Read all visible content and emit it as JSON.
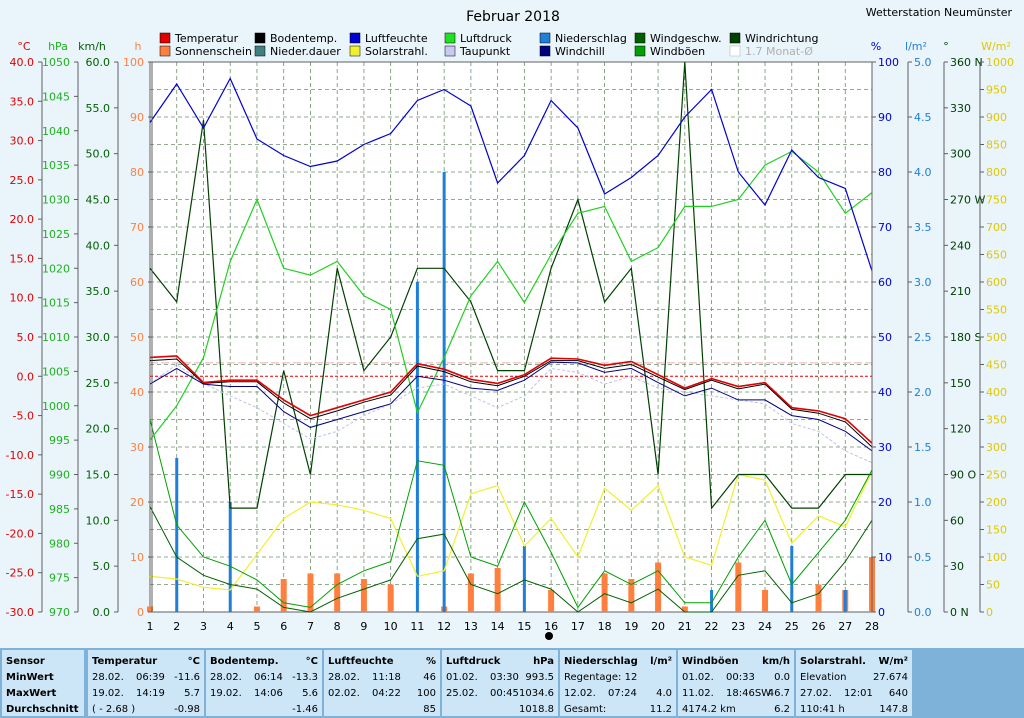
{
  "title": "Februar 2018",
  "station": "Wetterstation Neumünster",
  "colors": {
    "temperature": "#e00000",
    "soil_temp": "#000000",
    "humidity": "#0000d0",
    "pressure": "#20d020",
    "precip": "#1e7fd8",
    "windspeed": "#006000",
    "winddir": "#004000",
    "sunshine": "#ff7f3f",
    "solar": "#f0f030",
    "dewpoint": "#c0c0e8",
    "windchill": "#000080",
    "gusts": "#00a000",
    "plot_bg": "#ffffff",
    "grid": "#6f8f6f"
  },
  "axes": {
    "temp": {
      "unit": "°C",
      "min": -30,
      "max": 40,
      "ticks": [
        "40.0",
        "35.0",
        "30.0",
        "25.0",
        "20.0",
        "15.0",
        "10.0",
        "5.0",
        "0.0",
        "-5.0",
        "-10.0",
        "-15.0",
        "-20.0",
        "-25.0",
        "-30.0"
      ]
    },
    "pressure": {
      "unit": "hPa",
      "min": 970,
      "max": 1050,
      "ticks": [
        "1050",
        "1045",
        "1040",
        "1035",
        "1030",
        "1025",
        "1020",
        "1015",
        "1010",
        "1005",
        "1000",
        "995",
        "990",
        "985",
        "980",
        "975",
        "970"
      ]
    },
    "wind": {
      "unit": "km/h",
      "min": 0,
      "max": 60,
      "ticks": [
        "60.0",
        "55.0",
        "50.0",
        "45.0",
        "40.0",
        "35.0",
        "30.0",
        "25.0",
        "20.0",
        "15.0",
        "10.0",
        "5.0",
        "0.0"
      ]
    },
    "hours": {
      "unit": "h",
      "min": 0,
      "max": 100,
      "ticks": [
        "100",
        "90",
        "80",
        "70",
        "60",
        "50",
        "40",
        "30",
        "20",
        "10",
        "0"
      ]
    },
    "humidity": {
      "unit": "%",
      "min": 0,
      "max": 100,
      "ticks": [
        "100",
        "90",
        "80",
        "70",
        "60",
        "50",
        "40",
        "30",
        "20",
        "10",
        "0"
      ]
    },
    "precip": {
      "unit": "l/m²",
      "min": 0,
      "max": 5,
      "ticks": [
        "5.0",
        "4.5",
        "4.0",
        "3.5",
        "3.0",
        "2.5",
        "2.0",
        "1.5",
        "1.0",
        "0.5",
        "0.0"
      ]
    },
    "direction": {
      "unit": "°",
      "min": 0,
      "max": 360,
      "ticks": [
        "360 N",
        "330",
        "300",
        "270 W",
        "240",
        "210",
        "180 S",
        "150",
        "120",
        "90  O",
        "60",
        "30",
        "0  N"
      ]
    },
    "solar": {
      "unit": "W/m²",
      "min": 0,
      "max": 1000,
      "ticks": [
        "1000",
        "950",
        "900",
        "850",
        "800",
        "750",
        "700",
        "650",
        "600",
        "550",
        "500",
        "450",
        "400",
        "350",
        "300",
        "250",
        "200",
        "150",
        "100",
        "50",
        "0"
      ]
    },
    "x": {
      "min": 1,
      "max": 28,
      "ticks": [
        "1",
        "2",
        "3",
        "4",
        "5",
        "6",
        "7",
        "8",
        "9",
        "10",
        "11",
        "12",
        "13",
        "14",
        "15",
        "16",
        "17",
        "18",
        "19",
        "20",
        "21",
        "22",
        "23",
        "24",
        "25",
        "26",
        "27",
        "28"
      ]
    }
  },
  "legend": [
    {
      "label": "Temperatur",
      "color": "#e00000"
    },
    {
      "label": "Bodentemp.",
      "color": "#000000"
    },
    {
      "label": "Luftfeuchte",
      "color": "#0000d0"
    },
    {
      "label": "Luftdruck",
      "color": "#20e020"
    },
    {
      "label": "Niederschlag",
      "color": "#1e7fd8"
    },
    {
      "label": "Windgeschw.",
      "color": "#006000"
    },
    {
      "label": "Windrichtung",
      "color": "#004000"
    },
    {
      "label": "Sonnenschein",
      "color": "#ff7f3f"
    },
    {
      "label": "Nieder.dauer",
      "color": "#408080"
    },
    {
      "label": "Solarstrahl.",
      "color": "#f0f030"
    },
    {
      "label": "Taupunkt",
      "color": "#c8c8f0"
    },
    {
      "label": "Windchill",
      "color": "#000080"
    },
    {
      "label": "Windböen",
      "color": "#00a000"
    },
    {
      "label": "1.7 Monat-Ø",
      "color": "#ffffff"
    }
  ],
  "chart_data": {
    "type": "line",
    "x": [
      1,
      2,
      3,
      4,
      5,
      6,
      7,
      8,
      9,
      10,
      11,
      12,
      13,
      14,
      15,
      16,
      17,
      18,
      19,
      20,
      21,
      22,
      23,
      24,
      25,
      26,
      27,
      28
    ],
    "temperature_avg_ref": 1.7,
    "series": [
      {
        "name": "Temperatur",
        "axis": "temp",
        "values": [
          2.4,
          2.6,
          -0.8,
          -0.5,
          -0.5,
          -3.0,
          -5.0,
          -4.0,
          -3.0,
          -2.0,
          1.6,
          0.9,
          -0.4,
          -0.9,
          0.2,
          2.3,
          2.2,
          1.4,
          1.9,
          0.2,
          -1.5,
          -0.3,
          -1.3,
          -0.8,
          -4.0,
          -4.4,
          -5.4,
          -8.5
        ]
      },
      {
        "name": "Bodentemp.",
        "axis": "temp",
        "values": [
          2.0,
          2.2,
          -0.9,
          -0.7,
          -0.7,
          -3.4,
          -5.4,
          -4.4,
          -3.3,
          -2.4,
          1.3,
          0.6,
          -0.7,
          -1.2,
          0.0,
          2.0,
          2.0,
          1.0,
          1.5,
          -0.1,
          -1.7,
          -0.5,
          -1.6,
          -1.0,
          -4.2,
          -4.7,
          -5.8,
          -9.0
        ]
      },
      {
        "name": "Taupunkt",
        "axis": "temp",
        "values": [
          -1.0,
          1.5,
          -0.9,
          -2.5,
          -4.0,
          -6.0,
          -8.0,
          -7.0,
          -5.0,
          -3.5,
          -1.5,
          -1.0,
          -2.5,
          -4.0,
          -2.5,
          1.0,
          0.5,
          -1.0,
          0.0,
          -1.5,
          -2.0,
          -2.5,
          -3.0,
          -3.5,
          -6.0,
          -7.0,
          -9.5,
          -11.0
        ]
      },
      {
        "name": "Windchill",
        "axis": "temp",
        "values": [
          -1.0,
          1.0,
          -1.0,
          -1.3,
          -1.3,
          -4.5,
          -6.5,
          -5.5,
          -4.5,
          -3.5,
          0.0,
          -0.5,
          -1.5,
          -1.8,
          -0.5,
          1.8,
          1.7,
          0.5,
          1.0,
          -0.8,
          -2.5,
          -1.5,
          -3.0,
          -3.0,
          -5.0,
          -5.5,
          -7.0,
          -9.5
        ]
      },
      {
        "name": "Luftfeuchte",
        "axis": "humidity",
        "values": [
          89,
          96,
          88,
          97,
          86,
          83,
          81,
          82,
          85,
          87,
          93,
          95,
          92,
          78,
          83,
          93,
          88,
          76,
          79,
          83,
          90,
          95,
          80,
          74,
          84,
          79,
          77,
          62
        ]
      },
      {
        "name": "Luftdruck",
        "axis": "pressure",
        "values": [
          995,
          1000,
          1007,
          1021,
          1030,
          1020,
          1019,
          1021,
          1016,
          1014,
          999,
          1007,
          1016,
          1021,
          1015,
          1022,
          1028,
          1029,
          1021,
          1023,
          1029,
          1029,
          1030,
          1035,
          1037,
          1034,
          1028,
          1031
        ]
      },
      {
        "name": "Windgeschw.",
        "axis": "wind",
        "values": [
          11.5,
          6.0,
          4.0,
          3.0,
          2.5,
          0.5,
          0.0,
          1.5,
          2.5,
          3.5,
          8.0,
          8.5,
          3.0,
          2.0,
          3.5,
          2.5,
          0.0,
          2.0,
          1.0,
          2.5,
          0.0,
          0.0,
          4.0,
          4.5,
          1.0,
          2.0,
          5.5,
          10.0
        ]
      },
      {
        "name": "Windböen",
        "axis": "wind",
        "values": [
          21.0,
          9.5,
          6.0,
          5.0,
          3.5,
          1.0,
          0.5,
          3.0,
          4.5,
          5.5,
          16.5,
          16.0,
          6.0,
          5.0,
          12.0,
          6.5,
          0.5,
          4.5,
          3.0,
          4.5,
          1.0,
          1.0,
          6.0,
          10.0,
          3.0,
          6.5,
          10.0,
          15.5
        ]
      },
      {
        "name": "Windrichtung",
        "axis": "direction",
        "values": [
          225,
          203,
          322,
          68,
          68,
          158,
          90,
          225,
          158,
          180,
          225,
          225,
          203,
          158,
          158,
          225,
          270,
          203,
          225,
          90,
          360,
          68,
          90,
          90,
          68,
          68,
          90,
          90
        ]
      },
      {
        "name": "Solarstrahl.",
        "axis": "solar",
        "values": [
          65,
          60,
          45,
          40,
          105,
          170,
          200,
          195,
          185,
          170,
          65,
          75,
          215,
          230,
          120,
          170,
          100,
          225,
          185,
          230,
          100,
          85,
          250,
          240,
          125,
          175,
          155,
          255
        ]
      },
      {
        "name": "Sonnenschein",
        "axis": "hours",
        "type": "bar",
        "values": [
          1,
          0,
          0,
          0,
          1,
          6,
          7,
          7,
          6,
          5,
          0,
          1,
          7,
          8,
          0,
          4,
          0,
          7,
          6,
          9,
          1,
          0,
          9,
          4,
          0,
          5,
          4,
          10
        ]
      },
      {
        "name": "Niederschlag",
        "axis": "precip",
        "type": "bar",
        "values": [
          0.0,
          1.4,
          0.0,
          1.0,
          0.0,
          0.0,
          0.0,
          0.0,
          0.0,
          0.0,
          3.0,
          4.0,
          0.0,
          0.0,
          0.6,
          0.0,
          0.0,
          0.0,
          0.0,
          0.0,
          0.0,
          0.2,
          0.0,
          0.0,
          0.6,
          0.0,
          0.2,
          0.0
        ]
      }
    ]
  },
  "stats": {
    "row_labels": [
      "Sensor",
      "MinWert",
      "MaxWert",
      "Durchschnitt"
    ],
    "cells": [
      {
        "title": "Temperatur",
        "unit": "°C",
        "rows": [
          [
            "28.02.",
            "06:39",
            "-11.6"
          ],
          [
            "19.02.",
            "14:19",
            "5.7"
          ],
          [
            "( - 2.68 )",
            "",
            "-0.98"
          ]
        ]
      },
      {
        "title": "Bodentemp.",
        "unit": "°C",
        "rows": [
          [
            "28.02.",
            "06:14",
            "-13.3"
          ],
          [
            "19.02.",
            "14:06",
            "5.6"
          ],
          [
            "",
            "",
            "-1.46"
          ]
        ]
      },
      {
        "title": "Luftfeuchte",
        "unit": "%",
        "rows": [
          [
            "28.02.",
            "11:18",
            "46"
          ],
          [
            "02.02.",
            "04:22",
            "100"
          ],
          [
            "",
            "",
            "85"
          ]
        ]
      },
      {
        "title": "Luftdruck",
        "unit": "hPa",
        "rows": [
          [
            "01.02.",
            "03:30",
            "993.5"
          ],
          [
            "25.02.",
            "00:45",
            "1034.6"
          ],
          [
            "",
            "",
            "1018.8"
          ]
        ]
      },
      {
        "title": "Niederschlag",
        "unit": "l/m²",
        "rows": [
          [
            "Regentage: 12",
            "",
            ""
          ],
          [
            "12.02.",
            "07:24",
            "4.0"
          ],
          [
            "Gesamt:",
            "",
            "11.2"
          ]
        ]
      },
      {
        "title": "Windböen",
        "unit": "km/h",
        "rows": [
          [
            "01.02.",
            "00:33",
            "0.0"
          ],
          [
            "11.02.",
            "18:46SW",
            "46.7"
          ],
          [
            "4174.2 km",
            "",
            "6.2"
          ]
        ]
      },
      {
        "title": "Solarstrahl.",
        "unit": "W/m²",
        "rows": [
          [
            "Elevation",
            "",
            "27.674"
          ],
          [
            "27.02.",
            "12:01",
            "640"
          ],
          [
            "110:41 h",
            "",
            "147.8"
          ]
        ]
      }
    ]
  }
}
